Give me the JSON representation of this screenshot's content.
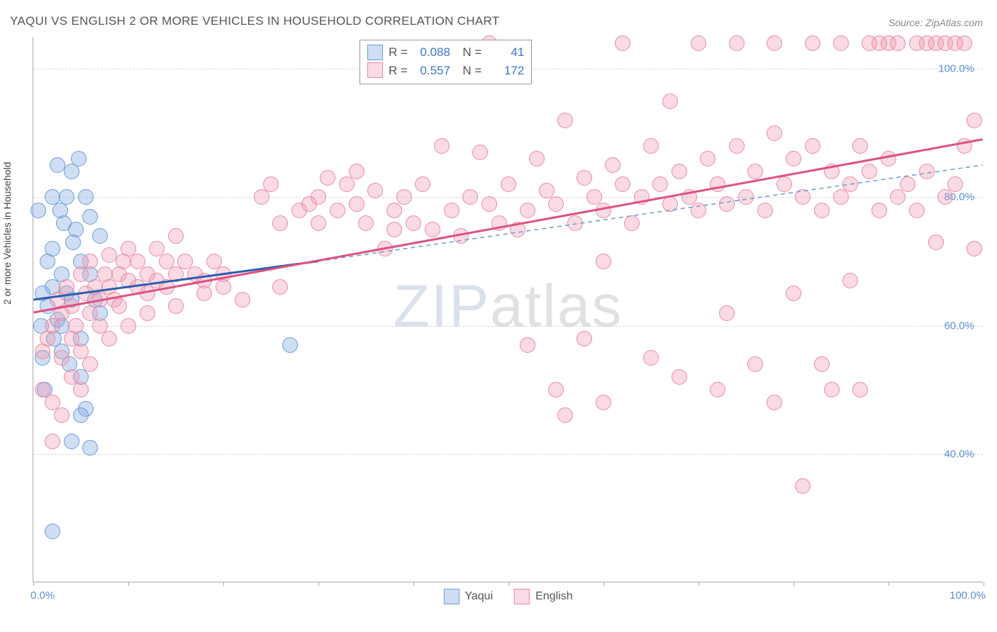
{
  "title": "YAQUI VS ENGLISH 2 OR MORE VEHICLES IN HOUSEHOLD CORRELATION CHART",
  "source": "Source: ZipAtlas.com",
  "watermark_a": "ZIP",
  "watermark_b": "atlas",
  "chart": {
    "type": "scatter",
    "y_label": "2 or more Vehicles in Household",
    "x_range": [
      0,
      100
    ],
    "y_range": [
      20,
      105
    ],
    "y_ticks": [
      40,
      60,
      80,
      100
    ],
    "y_tick_labels": [
      "40.0%",
      "60.0%",
      "80.0%",
      "100.0%"
    ],
    "x_ticks": [
      0,
      10,
      20,
      30,
      40,
      50,
      60,
      70,
      80,
      90,
      100
    ],
    "x_min_label": "0.0%",
    "x_max_label": "100.0%",
    "background_color": "#ffffff",
    "grid_color": "#d8d8d8",
    "tick_label_color": "#5b8fd6",
    "marker_radius": 11,
    "series": [
      {
        "name": "Yaqui",
        "fill": "rgba(120,160,220,0.35)",
        "stroke": "#6a9bd8",
        "solid_line_color": "#2a5db0",
        "dash_line_color": "#6a9bd8",
        "R": "0.088",
        "N": "41",
        "trend_solid": {
          "x1": 0,
          "y1": 64,
          "x2": 30,
          "y2": 70
        },
        "trend_dash": {
          "x1": 30,
          "y1": 70,
          "x2": 100,
          "y2": 85
        },
        "points": [
          [
            0.5,
            78
          ],
          [
            1,
            65
          ],
          [
            1.5,
            63
          ],
          [
            2,
            66
          ],
          [
            2.5,
            85
          ],
          [
            3,
            68
          ],
          [
            3,
            60
          ],
          [
            3.5,
            80
          ],
          [
            4,
            84
          ],
          [
            4.5,
            75
          ],
          [
            4.8,
            86
          ],
          [
            5,
            70
          ],
          [
            5,
            58
          ],
          [
            5.5,
            47
          ],
          [
            6,
            77
          ],
          [
            6,
            41
          ],
          [
            7,
            74
          ],
          [
            7,
            62
          ],
          [
            1,
            55
          ],
          [
            2,
            72
          ],
          [
            2.5,
            61
          ],
          [
            3,
            56
          ],
          [
            4,
            64
          ],
          [
            4,
            42
          ],
          [
            5,
            52
          ],
          [
            6,
            68
          ],
          [
            1.5,
            70
          ],
          [
            2,
            80
          ],
          [
            2.2,
            58
          ],
          [
            3.2,
            76
          ],
          [
            3.8,
            54
          ],
          [
            4.2,
            73
          ],
          [
            0.8,
            60
          ],
          [
            1.2,
            50
          ],
          [
            2.8,
            78
          ],
          [
            3.5,
            65
          ],
          [
            5.5,
            80
          ],
          [
            6.5,
            64
          ],
          [
            2,
            28
          ],
          [
            5,
            46
          ],
          [
            27,
            57
          ]
        ]
      },
      {
        "name": "English",
        "fill": "rgba(240,150,175,0.35)",
        "stroke": "#e88ba5",
        "solid_line_color": "#e05080",
        "dash_line_color": "#e88ba5",
        "R": "0.557",
        "N": "172",
        "trend_solid": {
          "x1": 0,
          "y1": 62,
          "x2": 100,
          "y2": 89
        },
        "trend_dash": null,
        "points": [
          [
            1,
            56
          ],
          [
            1.5,
            58
          ],
          [
            2,
            60
          ],
          [
            2,
            48
          ],
          [
            2.5,
            64
          ],
          [
            3,
            62
          ],
          [
            3,
            55
          ],
          [
            3.5,
            66
          ],
          [
            4,
            63
          ],
          [
            4,
            58
          ],
          [
            4.5,
            60
          ],
          [
            5,
            68
          ],
          [
            5,
            56
          ],
          [
            5,
            50
          ],
          [
            5.5,
            65
          ],
          [
            6,
            70
          ],
          [
            6,
            62
          ],
          [
            6.5,
            66
          ],
          [
            7,
            64
          ],
          [
            7,
            60
          ],
          [
            7.5,
            68
          ],
          [
            8,
            66
          ],
          [
            8,
            71
          ],
          [
            8.5,
            64
          ],
          [
            9,
            68
          ],
          [
            9,
            63
          ],
          [
            9.5,
            70
          ],
          [
            10,
            67
          ],
          [
            10,
            72
          ],
          [
            11,
            66
          ],
          [
            11,
            70
          ],
          [
            12,
            68
          ],
          [
            12,
            65
          ],
          [
            13,
            67
          ],
          [
            13,
            72
          ],
          [
            14,
            66
          ],
          [
            14,
            70
          ],
          [
            15,
            68
          ],
          [
            15,
            74
          ],
          [
            16,
            70
          ],
          [
            17,
            68
          ],
          [
            18,
            67
          ],
          [
            19,
            70
          ],
          [
            20,
            68
          ],
          [
            20,
            66
          ],
          [
            24,
            80
          ],
          [
            25,
            82
          ],
          [
            26,
            76
          ],
          [
            28,
            78
          ],
          [
            29,
            79
          ],
          [
            30,
            80
          ],
          [
            30,
            76
          ],
          [
            31,
            83
          ],
          [
            32,
            78
          ],
          [
            33,
            82
          ],
          [
            34,
            79
          ],
          [
            34,
            84
          ],
          [
            35,
            76
          ],
          [
            36,
            81
          ],
          [
            37,
            72
          ],
          [
            38,
            78
          ],
          [
            38,
            75
          ],
          [
            39,
            80
          ],
          [
            40,
            76
          ],
          [
            41,
            82
          ],
          [
            42,
            75
          ],
          [
            43,
            88
          ],
          [
            44,
            78
          ],
          [
            45,
            74
          ],
          [
            46,
            80
          ],
          [
            47,
            87
          ],
          [
            48,
            79
          ],
          [
            48,
            104
          ],
          [
            49,
            76
          ],
          [
            50,
            82
          ],
          [
            51,
            75
          ],
          [
            52,
            78
          ],
          [
            52,
            57
          ],
          [
            53,
            86
          ],
          [
            54,
            81
          ],
          [
            55,
            79
          ],
          [
            56,
            92
          ],
          [
            56,
            46
          ],
          [
            57,
            76
          ],
          [
            58,
            83
          ],
          [
            58,
            58
          ],
          [
            59,
            80
          ],
          [
            60,
            78
          ],
          [
            60,
            70
          ],
          [
            61,
            85
          ],
          [
            62,
            82
          ],
          [
            62,
            104
          ],
          [
            63,
            76
          ],
          [
            64,
            80
          ],
          [
            65,
            88
          ],
          [
            65,
            55
          ],
          [
            66,
            82
          ],
          [
            67,
            79
          ],
          [
            67,
            95
          ],
          [
            68,
            84
          ],
          [
            69,
            80
          ],
          [
            70,
            78
          ],
          [
            70,
            104
          ],
          [
            71,
            86
          ],
          [
            72,
            82
          ],
          [
            73,
            79
          ],
          [
            73,
            62
          ],
          [
            74,
            88
          ],
          [
            74,
            104
          ],
          [
            75,
            80
          ],
          [
            76,
            84
          ],
          [
            76,
            54
          ],
          [
            77,
            78
          ],
          [
            78,
            90
          ],
          [
            78,
            104
          ],
          [
            79,
            82
          ],
          [
            80,
            86
          ],
          [
            80,
            65
          ],
          [
            81,
            80
          ],
          [
            81,
            35
          ],
          [
            82,
            88
          ],
          [
            82,
            104
          ],
          [
            83,
            78
          ],
          [
            83,
            54
          ],
          [
            84,
            84
          ],
          [
            85,
            80
          ],
          [
            85,
            104
          ],
          [
            86,
            82
          ],
          [
            86,
            67
          ],
          [
            87,
            88
          ],
          [
            87,
            50
          ],
          [
            88,
            84
          ],
          [
            88,
            104
          ],
          [
            89,
            78
          ],
          [
            89,
            104
          ],
          [
            90,
            86
          ],
          [
            90,
            104
          ],
          [
            91,
            80
          ],
          [
            91,
            104
          ],
          [
            92,
            82
          ],
          [
            93,
            78
          ],
          [
            93,
            104
          ],
          [
            94,
            84
          ],
          [
            94,
            104
          ],
          [
            95,
            73
          ],
          [
            95,
            104
          ],
          [
            96,
            80
          ],
          [
            96,
            104
          ],
          [
            97,
            82
          ],
          [
            97,
            104
          ],
          [
            98,
            88
          ],
          [
            98,
            104
          ],
          [
            99,
            72
          ],
          [
            99,
            92
          ],
          [
            2,
            42
          ],
          [
            3,
            46
          ],
          [
            1,
            50
          ],
          [
            4,
            52
          ],
          [
            6,
            54
          ],
          [
            8,
            58
          ],
          [
            10,
            60
          ],
          [
            12,
            62
          ],
          [
            15,
            63
          ],
          [
            18,
            65
          ],
          [
            22,
            64
          ],
          [
            26,
            66
          ],
          [
            55,
            50
          ],
          [
            60,
            48
          ],
          [
            68,
            52
          ],
          [
            72,
            50
          ],
          [
            78,
            48
          ],
          [
            84,
            50
          ]
        ]
      }
    ]
  }
}
